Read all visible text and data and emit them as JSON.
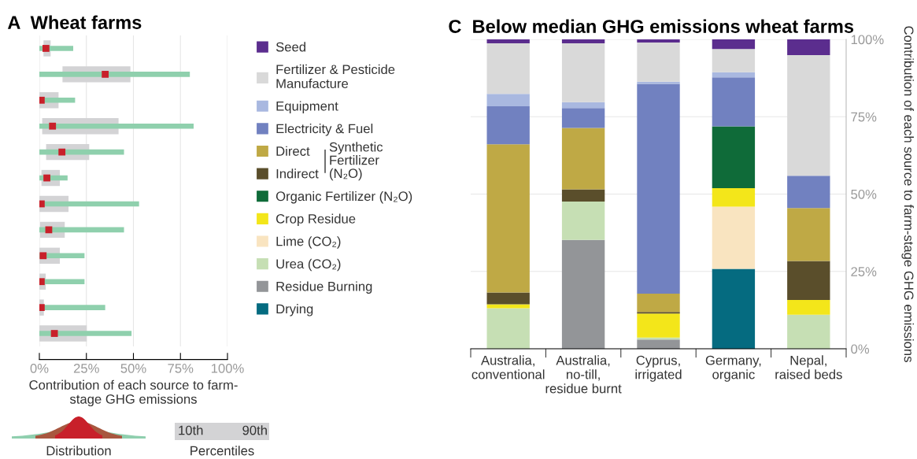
{
  "chart_data": [
    {
      "type": "bar",
      "orientation": "horizontal",
      "title": "A  Wheat farms",
      "xlabel": "Contribution of each source to farm-\nstage GHG emissions",
      "categories": [
        null,
        null,
        null,
        null,
        null,
        null,
        null,
        null,
        null,
        null,
        null,
        null
      ],
      "series": [
        {
          "type": "bar",
          "color": "#d3d3d5",
          "base": [
            2.2,
            12.3,
            0,
            1.5,
            3.6,
            1.1,
            0,
            0.4,
            0,
            0,
            0,
            0
          ],
          "values": [
            3.8,
            36.1,
            10.2,
            40.6,
            22.9,
            9.8,
            15.5,
            13.1,
            10.9,
            3.4,
            2.4,
            25.2
          ]
        },
        {
          "type": "bar",
          "color": "#8fd0ad",
          "values": [
            18,
            80,
            19,
            82,
            45,
            15,
            53,
            45,
            24,
            24,
            35,
            49
          ]
        },
        {
          "type": "scatter",
          "color": "#c8202a",
          "marker": "square",
          "values": [
            3.5,
            35,
            1,
            7,
            12,
            4,
            1,
            5,
            2,
            1,
            1,
            8
          ]
        }
      ],
      "xlim": [
        0,
        100
      ],
      "xticks": [
        {
          "value": 0,
          "label": "0%"
        },
        {
          "value": 25,
          "label": "25%"
        },
        {
          "value": 50,
          "label": "50%"
        },
        {
          "value": 75,
          "label": "75%"
        },
        {
          "value": 100,
          "label": "100%"
        }
      ],
      "grid": "x",
      "tick_labels": "x",
      "annotations": [
        "Distribution",
        "10th",
        "90th",
        "Percentiles"
      ]
    },
    {
      "type": "bar",
      "stacked": true,
      "title": "C  Below median GHG emissions wheat farms",
      "ylabel": "Contribution of each source to farm-stage GHG emissions",
      "categories": [
        "Australia,\nconventional",
        "Australia,\nno-till,\nresidue burnt",
        "Cyprus,\nirrigated",
        "Germany,\norganic",
        "Nepal,\nraised beds"
      ],
      "series": [
        {
          "name": "Drying",
          "color": "#056b80",
          "values": [
            0,
            0,
            0,
            25.8,
            0
          ]
        },
        {
          "name": "Residue Burning",
          "color": "#939598",
          "values": [
            0,
            35.2,
            3.0,
            0,
            0
          ]
        },
        {
          "name": "Urea (CO₂)",
          "color": "#c6dfb4",
          "values": [
            13.1,
            12.4,
            0.6,
            0,
            11.0
          ]
        },
        {
          "name": "Lime (CO₂)",
          "color": "#f9e4c0",
          "values": [
            0,
            0,
            0,
            20.1,
            0
          ]
        },
        {
          "name": "Crop Residue",
          "color": "#f3e61a",
          "values": [
            1.3,
            0,
            7.8,
            6.0,
            4.8
          ]
        },
        {
          "name": "Organic Fertilizer (N₂O)",
          "color": "#0f6b39",
          "values": [
            0,
            0,
            0,
            20.0,
            0
          ]
        },
        {
          "name": "Indirect",
          "color": "#5a4e2b",
          "values": [
            3.8,
            3.9,
            0.5,
            0,
            12.6
          ]
        },
        {
          "name": "Direct",
          "color": "#bfa945",
          "values": [
            47.9,
            19.9,
            5.9,
            0,
            17.1
          ]
        },
        {
          "name": "Electricity & Fuel",
          "color": "#7181c0",
          "values": [
            12.3,
            6.4,
            67.8,
            15.8,
            10.4
          ]
        },
        {
          "name": "Equipment",
          "color": "#a9b8e0",
          "values": [
            4.0,
            1.9,
            0.7,
            1.7,
            0
          ]
        },
        {
          "name": "Fertilizer & Pesticide\nManufacture",
          "color": "#d9d9d9",
          "values": [
            16.3,
            19.0,
            12.7,
            7.5,
            39.0
          ]
        },
        {
          "name": "Seed",
          "color": "#5b2d8e",
          "values": [
            1.3,
            1.3,
            1.0,
            3.1,
            5.1
          ]
        }
      ],
      "ylim": [
        0,
        100
      ],
      "yticks": [
        {
          "value": 0,
          "label": "0%"
        },
        {
          "value": 25,
          "label": "25%"
        },
        {
          "value": 50,
          "label": "50%"
        },
        {
          "value": 75,
          "label": "75%"
        },
        {
          "value": 100,
          "label": "100%"
        }
      ],
      "grid": "y",
      "legend": "left",
      "annotations": [
        "Synthetic\nFertilizer\n(N₂O)"
      ]
    }
  ]
}
